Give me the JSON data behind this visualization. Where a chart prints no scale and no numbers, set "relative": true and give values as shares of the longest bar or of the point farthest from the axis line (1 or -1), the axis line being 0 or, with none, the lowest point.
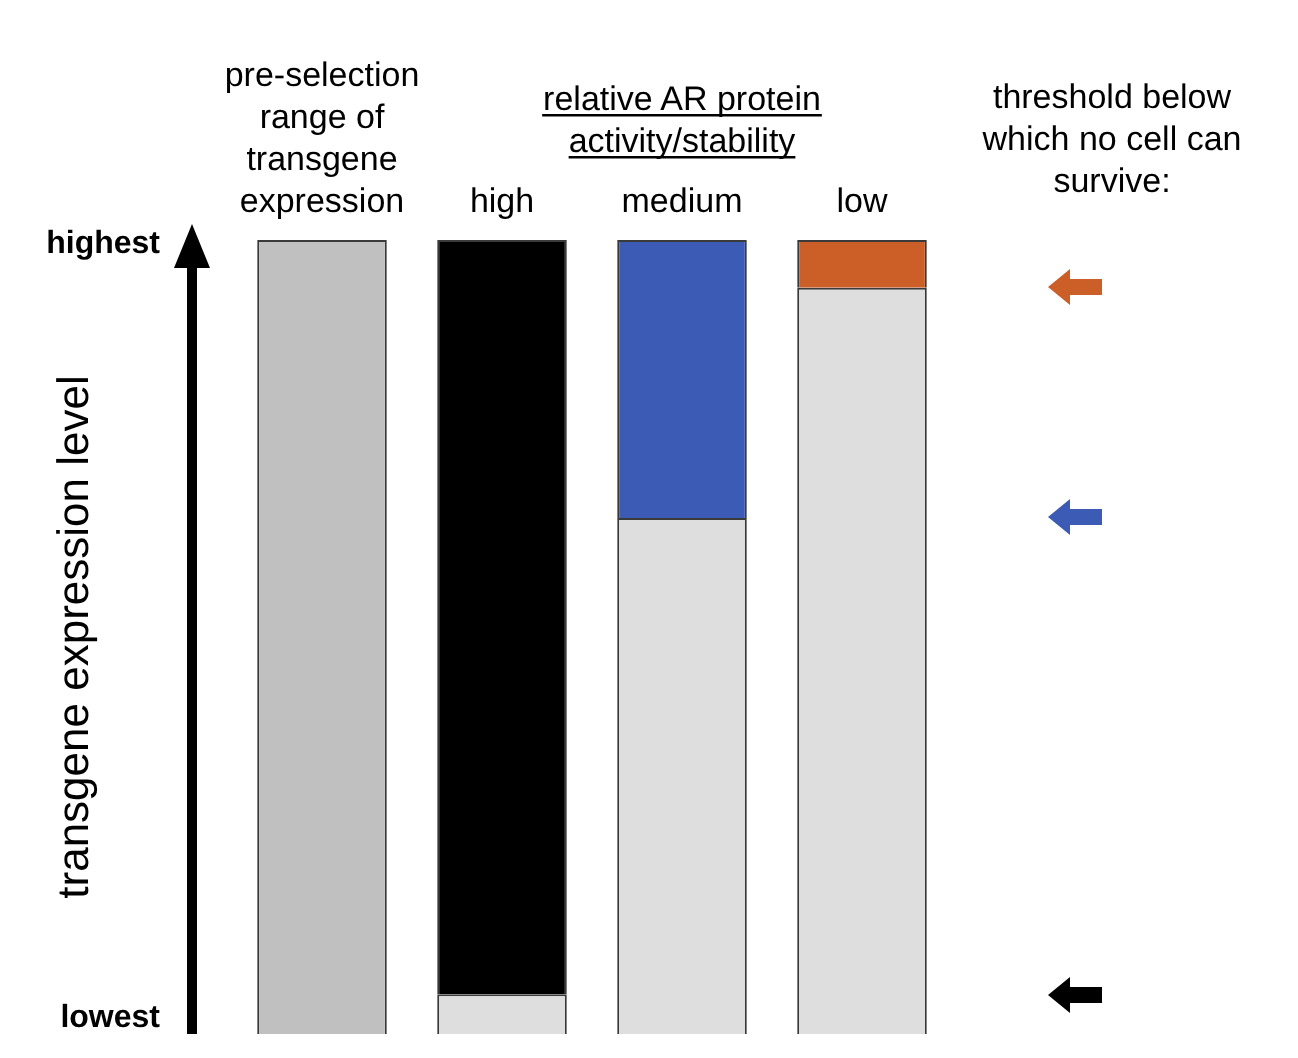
{
  "chart_data": {
    "type": "bar",
    "stacked": true,
    "relative": true,
    "ylabel": "transgene expression level",
    "categories": [
      "pre-selection range of transgene expression",
      "high",
      "medium",
      "low"
    ],
    "series": [
      {
        "color": "#dedede",
        "values": [
          null,
          0.05,
          0.65,
          0.94
        ]
      },
      {
        "colors": [
          "#c0c0c0",
          "#000000",
          "#3b5bb5",
          "#cc5f28"
        ],
        "values": [
          1,
          0.95,
          0.35,
          0.06
        ]
      }
    ],
    "annotations": [
      "relative AR protein activity/stability",
      "threshold below which no cell can survive:",
      "highest",
      "lowest"
    ],
    "legend": false
  }
}
